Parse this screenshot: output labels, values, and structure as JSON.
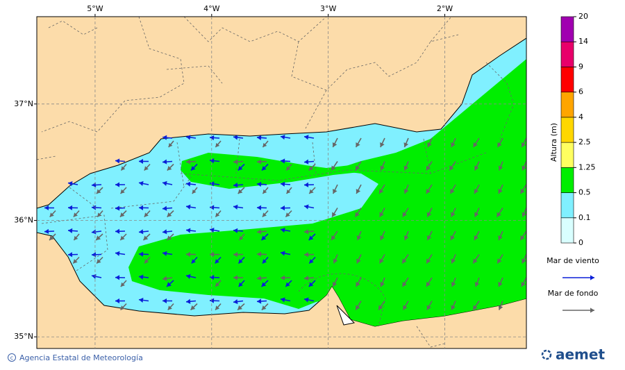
{
  "map": {
    "xlim": [
      -5.5,
      -1.3
    ],
    "ylim": [
      34.9,
      37.75
    ],
    "xticks": [
      {
        "value": -5,
        "label": "5°W"
      },
      {
        "value": -4,
        "label": "4°W"
      },
      {
        "value": -3,
        "label": "3°W"
      },
      {
        "value": -2,
        "label": "2°W"
      }
    ],
    "yticks": [
      {
        "value": 37,
        "label": "37°N"
      },
      {
        "value": 36,
        "label": "36°N"
      },
      {
        "value": 35,
        "label": "35°N"
      }
    ]
  },
  "colorbar": {
    "label": "Altura (m)",
    "ticks": [
      0,
      0.1,
      0.5,
      1.25,
      2.5,
      4,
      6,
      9,
      14,
      20
    ],
    "colors": [
      "#d9ffff",
      "#80f0ff",
      "#00ee00",
      "#ffff60",
      "#ffd700",
      "#ffa500",
      "#ff0000",
      "#e8006a",
      "#a000b0"
    ]
  },
  "legend": [
    {
      "name": "Mar de viento",
      "color": "#0a1fd8"
    },
    {
      "name": "Mar de fondo",
      "color": "#666666"
    }
  ],
  "footer": {
    "credit": "Agencia Estatal de Meteorología",
    "logo": "aemet"
  }
}
